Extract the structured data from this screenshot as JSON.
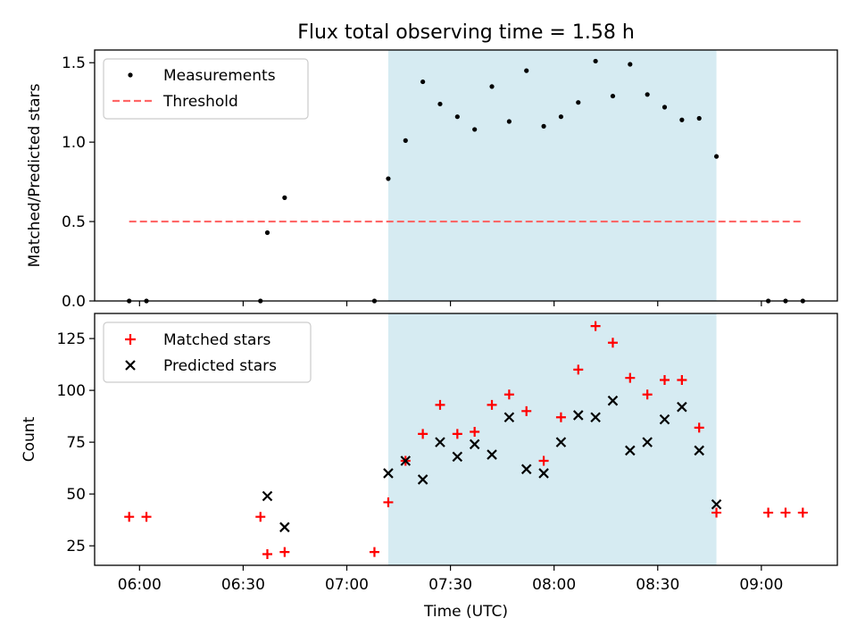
{
  "title": "Flux total observing time = 1.58 h",
  "colors": {
    "shade": "#add8e6",
    "threshold": "#ff6666",
    "matched": "#ff0000",
    "predicted": "#000000",
    "measurement": "#000000"
  },
  "chart_data": [
    {
      "type": "scatter",
      "panel": "top",
      "ylabel": "Matched/Predicted stars",
      "xlabel": "",
      "ylim": [
        0,
        1.58
      ],
      "yticks": [
        0.0,
        0.5,
        1.0,
        1.5
      ],
      "ytick_labels": [
        "0.0",
        "0.5",
        "1.0",
        "1.5"
      ],
      "xlim": [
        "05:47",
        "09:22"
      ],
      "shaded_interval": [
        "07:12",
        "08:47"
      ],
      "legend_position": "upper left",
      "threshold": {
        "name": "Threshold",
        "value": 0.5,
        "x_range": [
          "05:57",
          "09:12"
        ],
        "style": "dashed"
      },
      "series": [
        {
          "name": "Measurements",
          "marker": "dot",
          "points": [
            [
              "05:57",
              0.0
            ],
            [
              "06:02",
              0.0
            ],
            [
              "06:35",
              0.0
            ],
            [
              "06:37",
              0.43
            ],
            [
              "06:42",
              0.65
            ],
            [
              "07:08",
              0.0
            ],
            [
              "07:12",
              0.77
            ],
            [
              "07:17",
              1.01
            ],
            [
              "07:22",
              1.38
            ],
            [
              "07:27",
              1.24
            ],
            [
              "07:32",
              1.16
            ],
            [
              "07:37",
              1.08
            ],
            [
              "07:42",
              1.35
            ],
            [
              "07:47",
              1.13
            ],
            [
              "07:52",
              1.45
            ],
            [
              "07:57",
              1.1
            ],
            [
              "08:02",
              1.16
            ],
            [
              "08:07",
              1.25
            ],
            [
              "08:12",
              1.51
            ],
            [
              "08:17",
              1.29
            ],
            [
              "08:22",
              1.49
            ],
            [
              "08:27",
              1.3
            ],
            [
              "08:32",
              1.22
            ],
            [
              "08:37",
              1.14
            ],
            [
              "08:42",
              1.15
            ],
            [
              "08:47",
              0.91
            ],
            [
              "09:02",
              0.0
            ],
            [
              "09:07",
              0.0
            ],
            [
              "09:12",
              0.0
            ]
          ]
        }
      ]
    },
    {
      "type": "scatter",
      "panel": "bottom",
      "ylabel": "Count",
      "xlabel": "Time (UTC)",
      "ylim": [
        15.6,
        137.1
      ],
      "yticks": [
        25,
        50,
        75,
        100,
        125
      ],
      "ytick_labels": [
        "25",
        "50",
        "75",
        "100",
        "125"
      ],
      "xlim": [
        "05:47",
        "09:22"
      ],
      "xticks": [
        "06:00",
        "06:30",
        "07:00",
        "07:30",
        "08:00",
        "08:30",
        "09:00"
      ],
      "xtick_labels": [
        "06:00",
        "06:30",
        "07:00",
        "07:30",
        "08:00",
        "08:30",
        "09:00"
      ],
      "shaded_interval": [
        "07:12",
        "08:47"
      ],
      "legend_position": "upper left",
      "series": [
        {
          "name": "Matched stars",
          "marker": "plus",
          "points": [
            [
              "05:57",
              39
            ],
            [
              "06:02",
              39
            ],
            [
              "06:35",
              39
            ],
            [
              "06:37",
              21
            ],
            [
              "06:42",
              22
            ],
            [
              "07:08",
              22
            ],
            [
              "07:12",
              46
            ],
            [
              "07:17",
              66
            ],
            [
              "07:22",
              79
            ],
            [
              "07:27",
              93
            ],
            [
              "07:32",
              79
            ],
            [
              "07:37",
              80
            ],
            [
              "07:42",
              93
            ],
            [
              "07:47",
              98
            ],
            [
              "07:52",
              90
            ],
            [
              "07:57",
              66
            ],
            [
              "08:02",
              87
            ],
            [
              "08:07",
              110
            ],
            [
              "08:12",
              131
            ],
            [
              "08:17",
              123
            ],
            [
              "08:22",
              106
            ],
            [
              "08:27",
              98
            ],
            [
              "08:32",
              105
            ],
            [
              "08:37",
              105
            ],
            [
              "08:42",
              82
            ],
            [
              "08:47",
              41
            ],
            [
              "09:02",
              41
            ],
            [
              "09:07",
              41
            ],
            [
              "09:12",
              41
            ]
          ]
        },
        {
          "name": "Predicted stars",
          "marker": "x",
          "points": [
            [
              "06:37",
              49
            ],
            [
              "06:42",
              34
            ],
            [
              "07:12",
              60
            ],
            [
              "07:17",
              66
            ],
            [
              "07:22",
              57
            ],
            [
              "07:27",
              75
            ],
            [
              "07:32",
              68
            ],
            [
              "07:37",
              74
            ],
            [
              "07:42",
              69
            ],
            [
              "07:47",
              87
            ],
            [
              "07:52",
              62
            ],
            [
              "07:57",
              60
            ],
            [
              "08:02",
              75
            ],
            [
              "08:07",
              88
            ],
            [
              "08:12",
              87
            ],
            [
              "08:17",
              95
            ],
            [
              "08:22",
              71
            ],
            [
              "08:27",
              75
            ],
            [
              "08:32",
              86
            ],
            [
              "08:37",
              92
            ],
            [
              "08:42",
              71
            ],
            [
              "08:47",
              45
            ]
          ]
        }
      ]
    }
  ]
}
